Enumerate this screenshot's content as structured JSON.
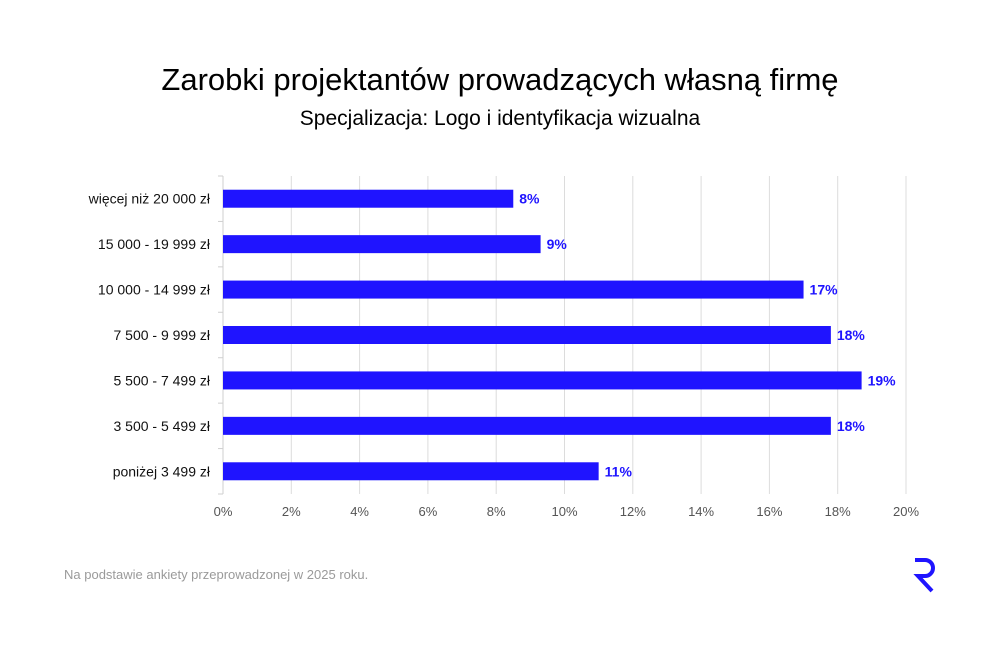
{
  "chart_data": {
    "type": "bar",
    "orientation": "horizontal",
    "title": "Zarobki projektantów prowadzących własną firmę",
    "subtitle": "Specjalizacja: Logo i identyfikacja wizualna",
    "categories": [
      "więcej niż 20 000 zł",
      "15 000 - 19 999 zł",
      "10 000 - 14 999 zł",
      "7 500 - 9 999 zł",
      "5 500 - 7 499 zł",
      "3 500 - 5 499 zł",
      "poniżej 3 499 zł"
    ],
    "values": [
      8.5,
      9.3,
      17.0,
      17.8,
      18.7,
      17.8,
      11.0
    ],
    "data_labels": [
      "8%",
      "9%",
      "17%",
      "18%",
      "19%",
      "18%",
      "11%"
    ],
    "xlim": [
      0,
      20
    ],
    "xticks": [
      "0%",
      "2%",
      "4%",
      "6%",
      "8%",
      "10%",
      "12%",
      "14%",
      "16%",
      "18%",
      "20%"
    ],
    "grid": true,
    "bar_color": "#1f14ff",
    "label_color": "#1f14ff"
  },
  "footnote": "Na podstawie ankiety przeprowadzonej w 2025 roku.",
  "logo": {
    "text": "R",
    "color": "#1f14ff"
  }
}
